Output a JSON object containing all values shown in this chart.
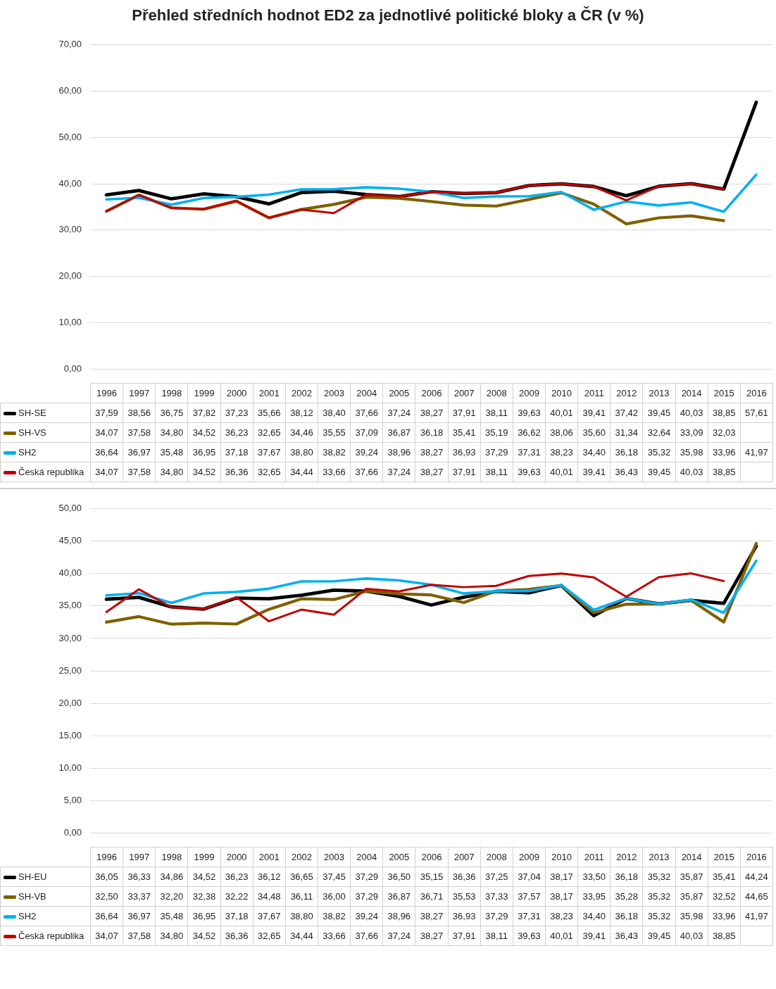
{
  "chart_data": [
    {
      "type": "line",
      "title": "Přehled středních hodnot ED2 za jednotlivé politické bloky a ČR (v %)",
      "categories": [
        "1996",
        "1997",
        "1998",
        "1999",
        "2000",
        "2001",
        "2002",
        "2003",
        "2004",
        "2005",
        "2006",
        "2007",
        "2008",
        "2009",
        "2010",
        "2011",
        "2012",
        "2013",
        "2014",
        "2015",
        "2016"
      ],
      "series": [
        {
          "name": "SH-SE",
          "color": "#000000",
          "values": [
            37.59,
            38.56,
            36.75,
            37.82,
            37.23,
            35.66,
            38.12,
            38.4,
            37.66,
            37.24,
            38.27,
            37.91,
            38.11,
            39.63,
            40.01,
            39.41,
            37.42,
            39.45,
            40.03,
            38.85,
            57.61
          ],
          "value_labels": [
            "37,59",
            "38,56",
            "36,75",
            "37,82",
            "37,23",
            "35,66",
            "38,12",
            "38,40",
            "37,66",
            "37,24",
            "38,27",
            "37,91",
            "38,11",
            "39,63",
            "40,01",
            "39,41",
            "37,42",
            "39,45",
            "40,03",
            "38,85",
            "57,61"
          ]
        },
        {
          "name": "SH-VS",
          "color": "#7f6000",
          "values": [
            34.07,
            37.58,
            34.8,
            34.52,
            36.23,
            32.65,
            34.46,
            35.55,
            37.09,
            36.87,
            36.18,
            35.41,
            35.19,
            36.62,
            38.06,
            35.6,
            31.34,
            32.64,
            33.09,
            32.03,
            null
          ],
          "value_labels": [
            "34,07",
            "37,58",
            "34,80",
            "34,52",
            "36,23",
            "32,65",
            "34,46",
            "35,55",
            "37,09",
            "36,87",
            "36,18",
            "35,41",
            "35,19",
            "36,62",
            "38,06",
            "35,60",
            "31,34",
            "32,64",
            "33,09",
            "32,03",
            null
          ]
        },
        {
          "name": "SH2",
          "color": "#00b0f0",
          "values": [
            36.64,
            36.97,
            35.48,
            36.95,
            37.18,
            37.67,
            38.8,
            38.82,
            39.24,
            38.96,
            38.27,
            36.93,
            37.29,
            37.31,
            38.23,
            34.4,
            36.18,
            35.32,
            35.98,
            33.96,
            41.97
          ],
          "value_labels": [
            "36,64",
            "36,97",
            "35,48",
            "36,95",
            "37,18",
            "37,67",
            "38,80",
            "38,82",
            "39,24",
            "38,96",
            "38,27",
            "36,93",
            "37,29",
            "37,31",
            "38,23",
            "34,40",
            "36,18",
            "35,32",
            "35,98",
            "33,96",
            "41,97"
          ]
        },
        {
          "name": "Česká republika",
          "color": "#c00000",
          "values": [
            34.07,
            37.58,
            34.8,
            34.52,
            36.36,
            32.65,
            34.44,
            33.66,
            37.66,
            37.24,
            38.27,
            37.91,
            38.11,
            39.63,
            40.01,
            39.41,
            36.43,
            39.45,
            40.03,
            38.85,
            null
          ],
          "value_labels": [
            "34,07",
            "37,58",
            "34,80",
            "34,52",
            "36,36",
            "32,65",
            "34,44",
            "33,66",
            "37,66",
            "37,24",
            "38,27",
            "37,91",
            "38,11",
            "39,63",
            "40,01",
            "39,41",
            "36,43",
            "39,45",
            "40,03",
            "38,85",
            null
          ]
        }
      ],
      "ylim": [
        0,
        70
      ],
      "yticks": [
        {
          "value": 0,
          "label": "0,00"
        },
        {
          "value": 10,
          "label": "10,00"
        },
        {
          "value": 20,
          "label": "20,00"
        },
        {
          "value": 30,
          "label": "30,00"
        },
        {
          "value": 40,
          "label": "40,00"
        },
        {
          "value": 50,
          "label": "50,00"
        },
        {
          "value": 60,
          "label": "60,00"
        },
        {
          "value": 70,
          "label": "70,00"
        }
      ],
      "grid": "y",
      "legend": "bottom left"
    },
    {
      "type": "line",
      "categories": [
        "1996",
        "1997",
        "1998",
        "1999",
        "2000",
        "2001",
        "2002",
        "2003",
        "2004",
        "2005",
        "2006",
        "2007",
        "2008",
        "2009",
        "2010",
        "2011",
        "2012",
        "2013",
        "2014",
        "2015",
        "2016"
      ],
      "series": [
        {
          "name": "SH-EU",
          "color": "#000000",
          "values": [
            36.05,
            36.33,
            34.86,
            34.52,
            36.23,
            36.12,
            36.65,
            37.45,
            37.29,
            36.5,
            35.15,
            36.36,
            37.25,
            37.04,
            38.17,
            33.5,
            36.18,
            35.32,
            35.87,
            35.41,
            44.24
          ],
          "value_labels": [
            "36,05",
            "36,33",
            "34,86",
            "34,52",
            "36,23",
            "36,12",
            "36,65",
            "37,45",
            "37,29",
            "36,50",
            "35,15",
            "36,36",
            "37,25",
            "37,04",
            "38,17",
            "33,50",
            "36,18",
            "35,32",
            "35,87",
            "35,41",
            "44,24"
          ]
        },
        {
          "name": "SH-VB",
          "color": "#7f6000",
          "values": [
            32.5,
            33.37,
            32.2,
            32.38,
            32.22,
            34.48,
            36.11,
            36.0,
            37.29,
            36.87,
            36.71,
            35.53,
            37.33,
            37.57,
            38.17,
            33.95,
            35.28,
            35.32,
            35.87,
            32.52,
            44.65
          ],
          "value_labels": [
            "32,50",
            "33,37",
            "32,20",
            "32,38",
            "32,22",
            "34,48",
            "36,11",
            "36,00",
            "37,29",
            "36,87",
            "36,71",
            "35,53",
            "37,33",
            "37,57",
            "38,17",
            "33,95",
            "35,28",
            "35,32",
            "35,87",
            "32,52",
            "44,65"
          ]
        },
        {
          "name": "SH2",
          "color": "#00b0f0",
          "values": [
            36.64,
            36.97,
            35.48,
            36.95,
            37.18,
            37.67,
            38.8,
            38.82,
            39.24,
            38.96,
            38.27,
            36.93,
            37.29,
            37.31,
            38.23,
            34.4,
            36.18,
            35.32,
            35.98,
            33.96,
            41.97
          ],
          "value_labels": [
            "36,64",
            "36,97",
            "35,48",
            "36,95",
            "37,18",
            "37,67",
            "38,80",
            "38,82",
            "39,24",
            "38,96",
            "38,27",
            "36,93",
            "37,29",
            "37,31",
            "38,23",
            "34,40",
            "36,18",
            "35,32",
            "35,98",
            "33,96",
            "41,97"
          ]
        },
        {
          "name": "Česká republika",
          "color": "#c00000",
          "values": [
            34.07,
            37.58,
            34.8,
            34.52,
            36.36,
            32.65,
            34.44,
            33.66,
            37.66,
            37.24,
            38.27,
            37.91,
            38.11,
            39.63,
            40.01,
            39.41,
            36.43,
            39.45,
            40.03,
            38.85,
            null
          ],
          "value_labels": [
            "34,07",
            "37,58",
            "34,80",
            "34,52",
            "36,36",
            "32,65",
            "34,44",
            "33,66",
            "37,66",
            "37,24",
            "38,27",
            "37,91",
            "38,11",
            "39,63",
            "40,01",
            "39,41",
            "36,43",
            "39,45",
            "40,03",
            "38,85",
            null
          ]
        }
      ],
      "ylim": [
        0,
        50
      ],
      "yticks": [
        {
          "value": 0,
          "label": "0,00"
        },
        {
          "value": 5,
          "label": "5,00"
        },
        {
          "value": 10,
          "label": "10,00"
        },
        {
          "value": 15,
          "label": "15,00"
        },
        {
          "value": 20,
          "label": "20,00"
        },
        {
          "value": 25,
          "label": "25,00"
        },
        {
          "value": 30,
          "label": "30,00"
        },
        {
          "value": 35,
          "label": "35,00"
        },
        {
          "value": 40,
          "label": "40,00"
        },
        {
          "value": 45,
          "label": "45,00"
        },
        {
          "value": 50,
          "label": "50,00"
        }
      ],
      "grid": "y",
      "legend": "bottom left"
    }
  ]
}
